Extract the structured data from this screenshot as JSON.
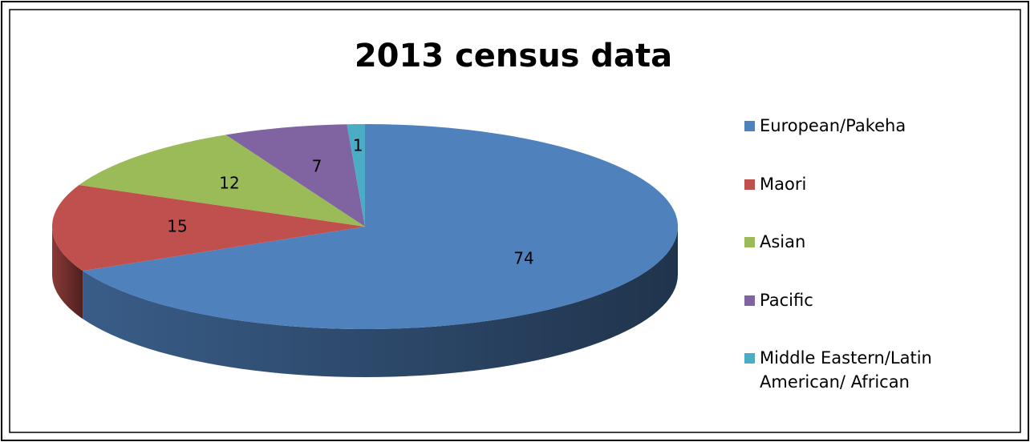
{
  "chart_data": {
    "type": "pie3d",
    "title": "2013 census data",
    "categories": [
      "European/Pakeha",
      "Maori",
      "Asian",
      "Pacific",
      "Middle Eastern/Latin American/ African"
    ],
    "values": [
      74,
      15,
      12,
      7,
      1
    ],
    "colors": [
      "#4f81bd",
      "#c0504d",
      "#9bbb59",
      "#8064a2",
      "#4bacc6"
    ],
    "legend": "right"
  }
}
